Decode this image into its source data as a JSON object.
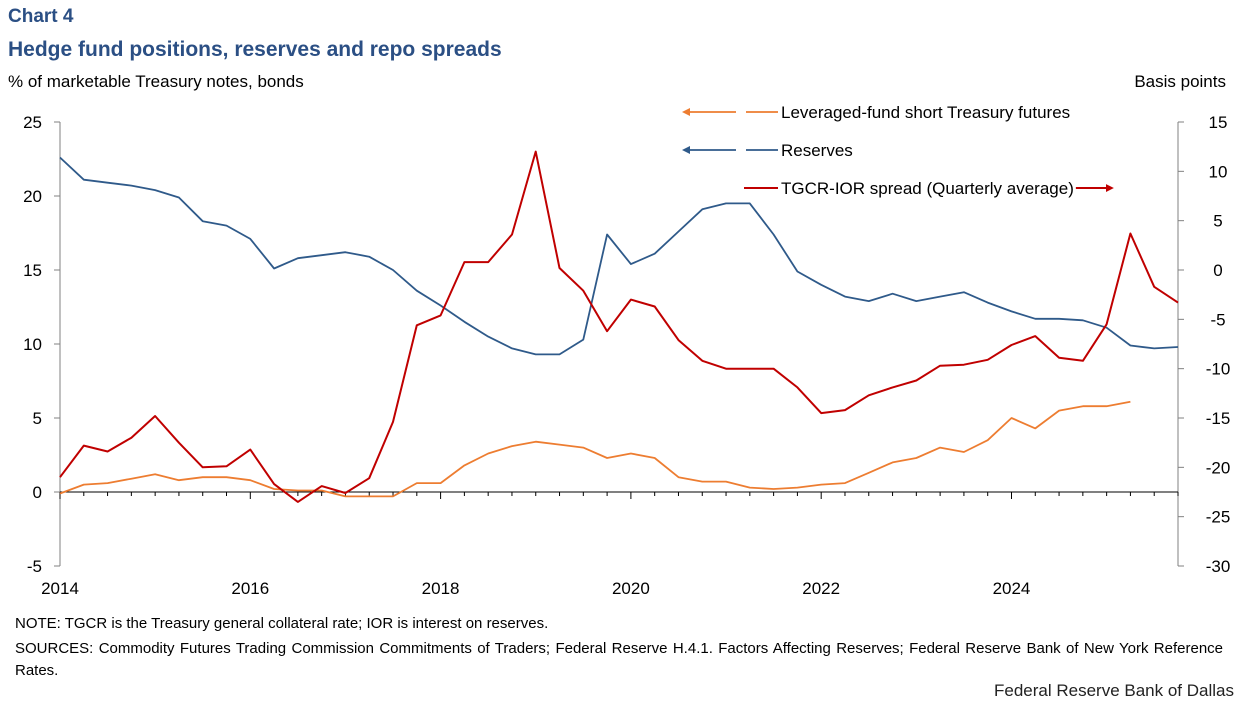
{
  "header": {
    "chart_number": "Chart 4",
    "title": "Hedge fund positions, reserves and repo spreads"
  },
  "footer": {
    "note": "NOTE: TGCR is the Treasury general collateral rate; IOR is interest on reserves.",
    "sources": "SOURCES: Commodity Futures Trading Commission Commitments of Traders; Federal Reserve H.4.1. Factors Affecting Reserves; Federal Reserve Bank of New York Reference Rates.",
    "credit": "Federal Reserve Bank of Dallas"
  },
  "colors": {
    "futures": "#ed7d31",
    "reserves": "#2f5a8a",
    "spread": "#c00000",
    "axis": "#808080",
    "title": "#2b4f84"
  },
  "chart_data": {
    "type": "line",
    "ylabel_left": "% of marketable Treasury notes, bonds",
    "ylabel_right": "Basis points",
    "xlim": [
      2014,
      2025.75
    ],
    "ylim_left": [
      -5,
      25
    ],
    "ylim_right": [
      -30,
      15
    ],
    "x_ticks": [
      "2014",
      "2016",
      "2018",
      "2020",
      "2022",
      "2024"
    ],
    "x_tick_values": [
      2014,
      2016,
      2018,
      2020,
      2022,
      2024
    ],
    "y_ticks_left": [
      "25",
      "20",
      "15",
      "10",
      "5",
      "0",
      "-5"
    ],
    "y_tick_values_left": [
      25,
      20,
      15,
      10,
      5,
      0,
      -5
    ],
    "y_ticks_right": [
      "15",
      "10",
      "5",
      "0",
      "-5",
      "-10",
      "-15",
      "-20",
      "-25",
      "-30"
    ],
    "y_tick_values_right": [
      15,
      10,
      5,
      0,
      -5,
      -10,
      -15,
      -20,
      -25,
      -30
    ],
    "grid": false,
    "legend_position": "top-right",
    "series": [
      {
        "name": "Leveraged-fund short Treasury futures",
        "axis": "left",
        "legend_arrow": "left",
        "color": "#ed7d31",
        "x": [
          2014,
          2014.25,
          2014.5,
          2014.75,
          2015,
          2015.25,
          2015.5,
          2015.75,
          2016,
          2016.25,
          2016.5,
          2016.75,
          2017,
          2017.25,
          2017.5,
          2017.75,
          2018,
          2018.25,
          2018.5,
          2018.75,
          2019,
          2019.25,
          2019.5,
          2019.75,
          2020,
          2020.25,
          2020.5,
          2020.75,
          2021,
          2021.25,
          2021.5,
          2021.75,
          2022,
          2022.25,
          2022.5,
          2022.75,
          2023,
          2023.25,
          2023.5,
          2023.75,
          2024,
          2024.25,
          2024.5,
          2024.75,
          2025,
          2025.25
        ],
        "values": [
          -0.1,
          0.5,
          0.6,
          0.9,
          1.2,
          0.8,
          1.0,
          1.0,
          0.8,
          0.2,
          0.1,
          0.1,
          -0.3,
          -0.3,
          -0.3,
          0.6,
          0.6,
          1.8,
          2.6,
          3.1,
          3.4,
          3.2,
          3.0,
          2.3,
          2.6,
          2.3,
          1.0,
          0.7,
          0.7,
          0.3,
          0.2,
          0.3,
          0.5,
          0.6,
          1.3,
          2.0,
          2.3,
          3.0,
          2.7,
          3.5,
          5.0,
          4.3,
          5.5,
          5.8,
          5.8,
          6.1
        ]
      },
      {
        "name": "Reserves",
        "axis": "left",
        "legend_arrow": "left",
        "color": "#2f5a8a",
        "x": [
          2014,
          2014.25,
          2014.5,
          2014.75,
          2015,
          2015.25,
          2015.5,
          2015.75,
          2016,
          2016.25,
          2016.5,
          2016.75,
          2017,
          2017.25,
          2017.5,
          2017.75,
          2018,
          2018.25,
          2018.5,
          2018.75,
          2019,
          2019.25,
          2019.5,
          2019.75,
          2020,
          2020.25,
          2020.5,
          2020.75,
          2021,
          2021.25,
          2021.5,
          2021.75,
          2022,
          2022.25,
          2022.5,
          2022.75,
          2023,
          2023.25,
          2023.5,
          2023.75,
          2024,
          2024.25,
          2024.5,
          2024.75,
          2025,
          2025.25,
          2025.5,
          2025.75
        ],
        "values": [
          22.6,
          21.1,
          20.9,
          20.7,
          20.4,
          19.9,
          18.3,
          18.0,
          17.1,
          15.1,
          15.8,
          16.0,
          16.2,
          15.9,
          15.0,
          13.6,
          12.6,
          11.5,
          10.5,
          9.7,
          9.3,
          9.3,
          10.3,
          17.4,
          15.4,
          16.1,
          17.6,
          19.1,
          19.5,
          19.5,
          17.4,
          14.9,
          14.0,
          13.2,
          12.9,
          13.4,
          12.9,
          13.2,
          13.5,
          12.8,
          12.2,
          11.7,
          11.7,
          11.6,
          11.1,
          9.9,
          9.7,
          9.8
        ]
      },
      {
        "name": "TGCR-IOR spread (Quarterly average)",
        "axis": "right",
        "legend_arrow": "right",
        "color": "#c00000",
        "x": [
          2014,
          2014.25,
          2014.5,
          2014.75,
          2015,
          2015.25,
          2015.5,
          2015.75,
          2016,
          2016.25,
          2016.5,
          2016.75,
          2017,
          2017.25,
          2017.5,
          2017.75,
          2018,
          2018.25,
          2018.5,
          2018.75,
          2019,
          2019.25,
          2019.5,
          2019.75,
          2020,
          2020.25,
          2020.5,
          2020.75,
          2021,
          2021.25,
          2021.5,
          2021.75,
          2022,
          2022.25,
          2022.5,
          2022.75,
          2023,
          2023.25,
          2023.5,
          2023.75,
          2024,
          2024.25,
          2024.5,
          2024.75,
          2025,
          2025.25,
          2025.5,
          2025.75
        ],
        "values": [
          -21,
          -17.8,
          -18.4,
          -17,
          -14.8,
          -17.5,
          -20,
          -19.9,
          -18.2,
          -21.7,
          -23.5,
          -21.9,
          -22.6,
          -21.1,
          -15.4,
          -5.6,
          -4.6,
          0.8,
          0.8,
          3.6,
          12,
          0.2,
          -2.1,
          -6.2,
          -3,
          -3.7,
          -7.1,
          -9.2,
          -10,
          -10,
          -10,
          -11.9,
          -14.5,
          -14.2,
          -12.7,
          -11.9,
          -11.2,
          -9.7,
          -9.6,
          -9.1,
          -7.6,
          -6.7,
          -8.9,
          -9.2,
          -5.5,
          3.7,
          -1.7,
          -3.3
        ]
      }
    ]
  }
}
